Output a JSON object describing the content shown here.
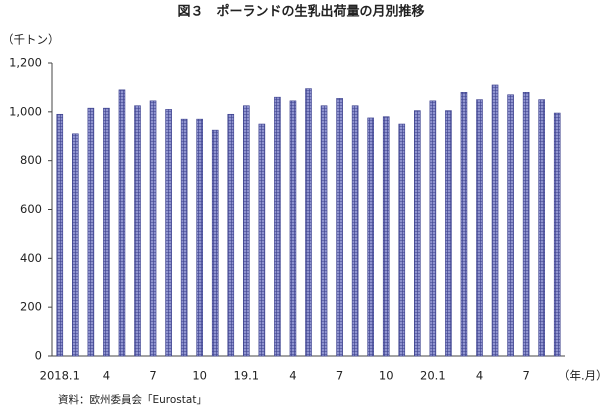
{
  "chart_data": {
    "type": "bar",
    "title": "図３　ポーランドの生乳出荷量の月別推移",
    "y_label": "（千トン）",
    "x_label": "（年.月）",
    "source": "資料：欧州委員会「Eurostat」",
    "categories": [
      "2018.1",
      null,
      null,
      "4",
      null,
      null,
      "7",
      null,
      null,
      "10",
      null,
      null,
      "19.1",
      null,
      null,
      "4",
      null,
      null,
      "7",
      null,
      null,
      "10",
      null,
      null,
      "20.1",
      null,
      null,
      "4",
      null,
      null,
      "7",
      null,
      null
    ],
    "values": [
      990,
      910,
      1015,
      1015,
      1090,
      1025,
      1045,
      1010,
      970,
      970,
      925,
      990,
      1025,
      950,
      1060,
      1045,
      1095,
      1025,
      1055,
      1025,
      975,
      980,
      950,
      1005,
      1045,
      1005,
      1080,
      1050,
      1110,
      1070,
      1080,
      1050,
      995
    ],
    "color": "#8f93cf",
    "ylim": [
      0,
      1200
    ],
    "yticks": [
      0,
      200,
      400,
      600,
      800,
      {
        "value": 1000,
        "label": "1,000"
      },
      {
        "value": 1200,
        "label": "1,200"
      }
    ],
    "grid": false
  }
}
